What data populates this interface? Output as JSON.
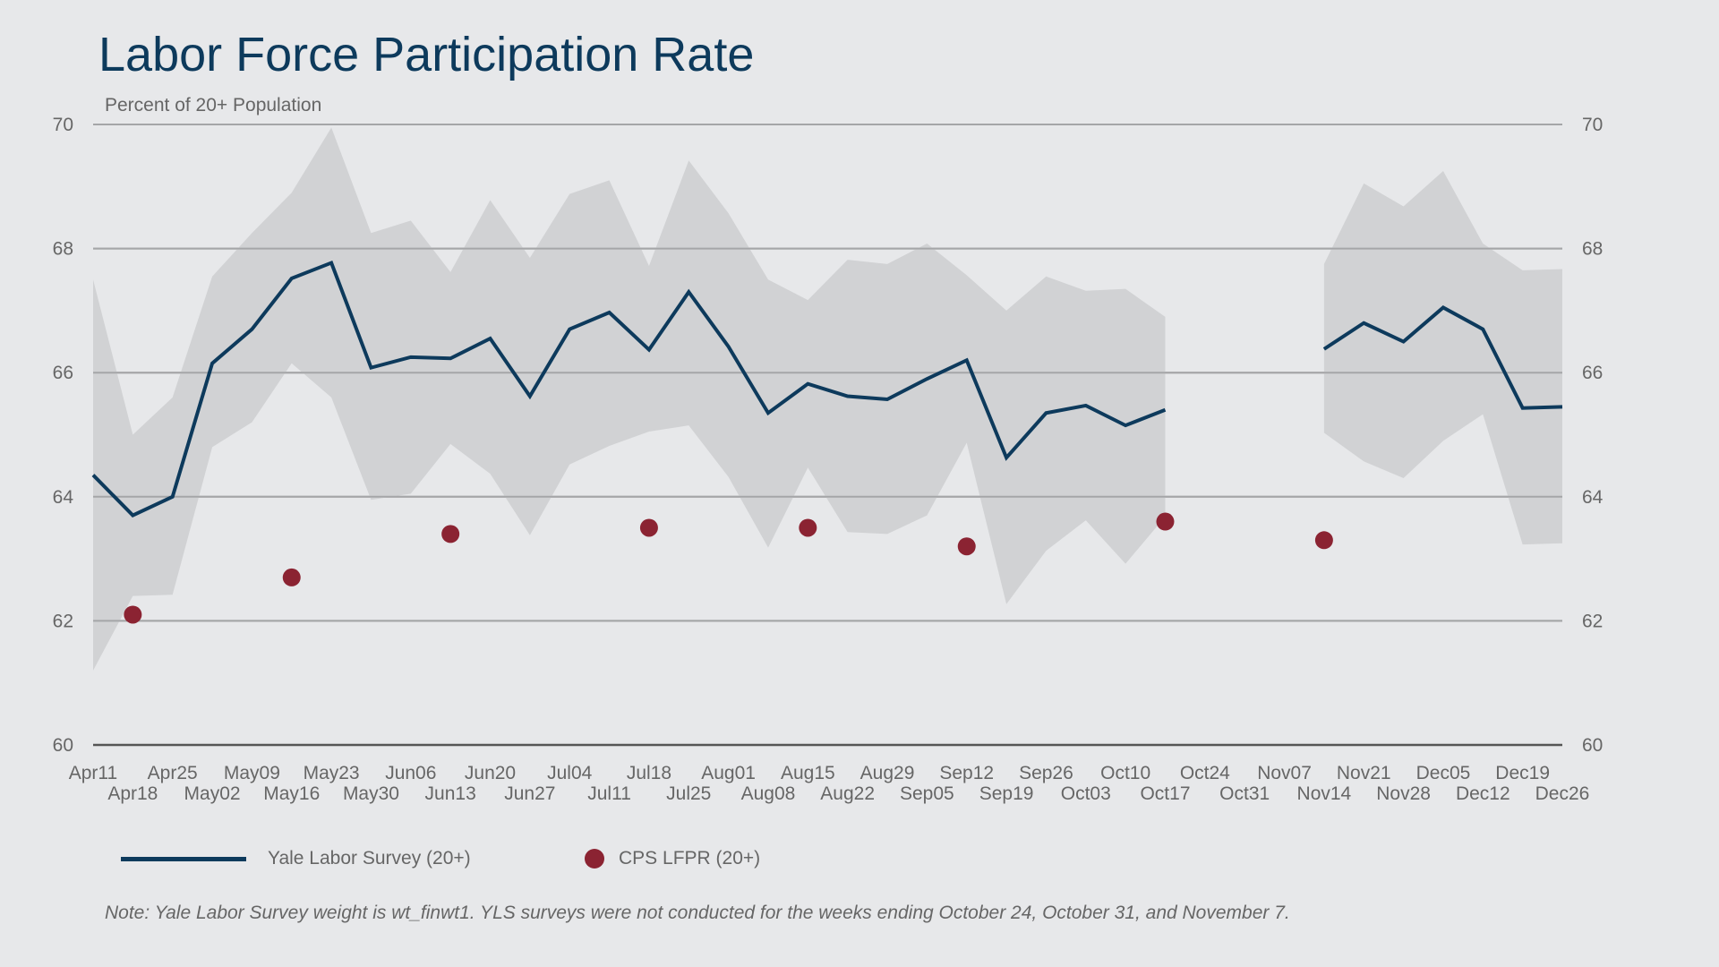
{
  "chart_data": {
    "type": "line",
    "title": "Labor Force Participation Rate",
    "ylabel": "Percent of 20+ Population",
    "ylim": [
      60,
      70
    ],
    "yticks": [
      60,
      62,
      64,
      66,
      68,
      70
    ],
    "categories": [
      "Apr11",
      "Apr18",
      "Apr25",
      "May02",
      "May09",
      "May16",
      "May23",
      "May30",
      "Jun06",
      "Jun13",
      "Jun20",
      "Jun27",
      "Jul04",
      "Jul11",
      "Jul18",
      "Jul25",
      "Aug01",
      "Aug08",
      "Aug15",
      "Aug22",
      "Aug29",
      "Sep05",
      "Sep12",
      "Sep19",
      "Sep26",
      "Oct03",
      "Oct10",
      "Oct17",
      "Oct24",
      "Oct31",
      "Nov07",
      "Nov14",
      "Nov21",
      "Nov28",
      "Dec05",
      "Dec12",
      "Dec19",
      "Dec26"
    ],
    "series": [
      {
        "name": "Yale Labor Survey (20+)",
        "kind": "line",
        "color": "#0d3a5c",
        "values": [
          64.35,
          63.7,
          64.0,
          66.15,
          66.7,
          67.52,
          67.77,
          66.08,
          66.25,
          66.23,
          66.55,
          65.62,
          66.7,
          66.97,
          66.37,
          67.3,
          66.42,
          65.35,
          65.82,
          65.62,
          65.57,
          65.9,
          66.2,
          64.63,
          65.35,
          65.47,
          65.15,
          65.4,
          null,
          null,
          null,
          66.38,
          66.8,
          66.5,
          67.05,
          66.7,
          65.43,
          65.45
        ],
        "band_upper": [
          67.5,
          65.0,
          65.6,
          67.55,
          68.25,
          68.9,
          69.95,
          68.25,
          68.45,
          67.62,
          68.78,
          67.85,
          68.88,
          69.1,
          67.72,
          69.42,
          68.57,
          67.5,
          67.17,
          67.82,
          67.75,
          68.08,
          67.57,
          67.0,
          67.55,
          67.32,
          67.35,
          66.9,
          null,
          null,
          null,
          67.75,
          69.05,
          68.68,
          69.25,
          68.08,
          67.65,
          67.67
        ],
        "band_lower": [
          61.2,
          62.4,
          62.42,
          64.8,
          65.2,
          66.15,
          65.6,
          63.95,
          64.05,
          64.85,
          64.37,
          63.38,
          64.52,
          64.82,
          65.05,
          65.15,
          64.32,
          63.18,
          64.47,
          63.43,
          63.4,
          63.7,
          64.87,
          62.27,
          63.13,
          63.62,
          62.92,
          63.68,
          null,
          null,
          null,
          65.03,
          64.57,
          64.3,
          64.9,
          65.33,
          63.23,
          63.25
        ]
      },
      {
        "name": "CPS LFPR (20+)",
        "kind": "scatter",
        "color": "#8b2332",
        "points": [
          {
            "x": "Apr18",
            "y": 62.1
          },
          {
            "x": "May16",
            "y": 62.7
          },
          {
            "x": "Jun13",
            "y": 63.4
          },
          {
            "x": "Jul18",
            "y": 63.5
          },
          {
            "x": "Aug15",
            "y": 63.5
          },
          {
            "x": "Sep12",
            "y": 63.2
          },
          {
            "x": "Oct17",
            "y": 63.6
          },
          {
            "x": "Nov14",
            "y": 63.3
          }
        ]
      }
    ],
    "band_color": "#d1d2d4",
    "grid": true,
    "legend": "bottom-left",
    "note": "Note: Yale Labor Survey weight is wt_finwt1. YLS surveys were not conducted for the weeks ending October 24, October 31, and November 7."
  }
}
